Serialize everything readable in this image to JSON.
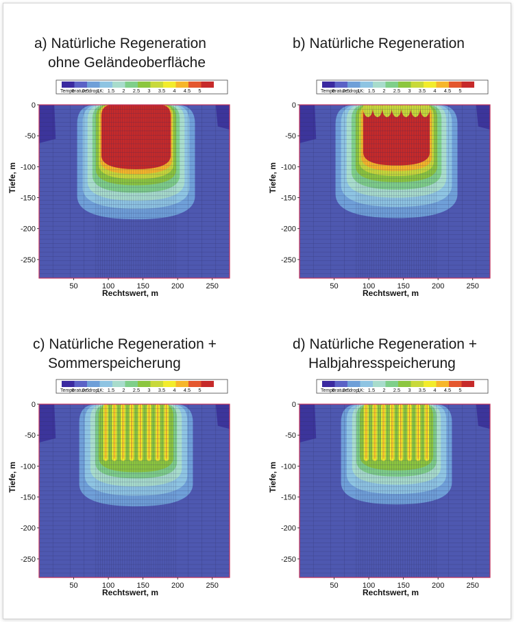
{
  "chart_data": [
    {
      "type": "heatmap",
      "title_line1": "a) Natürliche Regeneration",
      "title_line2": "ohne Geländeoberfläche",
      "xlabel": "Rechtswert, m",
      "ylabel": "Tiefe, m",
      "xlim": [
        0,
        275
      ],
      "ylim": [
        -280,
        0
      ],
      "xticks": [
        50,
        100,
        150,
        200,
        250
      ],
      "yticks": [
        0,
        -50,
        -100,
        -150,
        -200,
        -250
      ],
      "legend_title": "Temperature drop,K:",
      "scale_levels": [
        0,
        0.5,
        1,
        1.5,
        2,
        2.5,
        3,
        3.5,
        4,
        4.5,
        5
      ],
      "scale_colors": [
        "#3b2aa0",
        "#5b62c6",
        "#6f9fd8",
        "#8ec4e2",
        "#a8dccc",
        "#7fcf8a",
        "#8cc63f",
        "#c8d93a",
        "#f2ec2b",
        "#f6b62a",
        "#e4572e",
        "#c62a2a"
      ],
      "background_color": "#4e58b0",
      "contours": [
        {
          "level": 0.5,
          "x_range": [
            55,
            225
          ],
          "y_bottom": -185
        },
        {
          "level": 1,
          "x_range": [
            63,
            217
          ],
          "y_bottom": -168
        },
        {
          "level": 1.5,
          "x_range": [
            70,
            210
          ],
          "y_bottom": -155
        },
        {
          "level": 2,
          "x_range": [
            77,
            203
          ],
          "y_bottom": -142
        },
        {
          "level": 2.5,
          "x_range": [
            82,
            198
          ],
          "y_bottom": -130
        },
        {
          "level": 3,
          "x_range": [
            86,
            194
          ],
          "y_bottom": -120
        },
        {
          "level": 4,
          "x_range": [
            88,
            192
          ],
          "y_bottom": -112
        },
        {
          "level": 5,
          "x_range": [
            90,
            190
          ],
          "y_bottom": -104
        }
      ],
      "core_profile": "uniform"
    },
    {
      "type": "heatmap",
      "title_line1": "b) Natürliche Regeneration",
      "title_line2": "",
      "xlabel": "Rechtswert, m",
      "ylabel": "Tiefe, m",
      "xlim": [
        0,
        275
      ],
      "ylim": [
        -280,
        0
      ],
      "xticks": [
        50,
        100,
        150,
        200,
        250
      ],
      "yticks": [
        0,
        -50,
        -100,
        -150,
        -200,
        -250
      ],
      "legend_title": "Temperature drop,K:",
      "scale_levels": [
        0,
        0.5,
        1,
        1.5,
        2,
        2.5,
        3,
        3.5,
        4,
        4.5,
        5
      ],
      "scale_colors": [
        "#3b2aa0",
        "#5b62c6",
        "#6f9fd8",
        "#8ec4e2",
        "#a8dccc",
        "#7fcf8a",
        "#8cc63f",
        "#c8d93a",
        "#f2ec2b",
        "#f6b62a",
        "#e4572e",
        "#c62a2a"
      ],
      "background_color": "#4e58b0",
      "contours": [
        {
          "level": 0.5,
          "x_range": [
            52,
            228
          ],
          "y_bottom": -183
        },
        {
          "level": 1,
          "x_range": [
            60,
            220
          ],
          "y_bottom": -165
        },
        {
          "level": 1.5,
          "x_range": [
            68,
            212
          ],
          "y_bottom": -150
        },
        {
          "level": 2,
          "x_range": [
            75,
            205
          ],
          "y_bottom": -137
        },
        {
          "level": 2.5,
          "x_range": [
            81,
            199
          ],
          "y_bottom": -125
        },
        {
          "level": 3,
          "x_range": [
            86,
            194
          ],
          "y_bottom": -115
        },
        {
          "level": 4,
          "x_range": [
            89,
            191
          ],
          "y_bottom": -107
        },
        {
          "level": 5,
          "x_range": [
            92,
            188
          ],
          "y_bottom": -98
        }
      ],
      "core_profile": "scalloped"
    },
    {
      "type": "heatmap",
      "title_line1": "c) Natürliche Regeneration +",
      "title_line2": "Sommerspeicherung",
      "xlabel": "Rechtswert, m",
      "ylabel": "Tiefe, m",
      "xlim": [
        0,
        275
      ],
      "ylim": [
        -280,
        0
      ],
      "xticks": [
        50,
        100,
        150,
        200,
        250
      ],
      "yticks": [
        0,
        -50,
        -100,
        -150,
        -200,
        -250
      ],
      "legend_title": "Temperature drop,K:",
      "scale_levels": [
        0,
        0.5,
        1,
        1.5,
        2,
        2.5,
        3,
        3.5,
        4,
        4.5,
        5
      ],
      "scale_colors": [
        "#3b2aa0",
        "#5b62c6",
        "#6f9fd8",
        "#8ec4e2",
        "#a8dccc",
        "#7fcf8a",
        "#8cc63f",
        "#c8d93a",
        "#f2ec2b",
        "#f6b62a",
        "#e4572e",
        "#c62a2a"
      ],
      "background_color": "#4e58b0",
      "contours": [
        {
          "level": 0.5,
          "x_range": [
            58,
            222
          ],
          "y_bottom": -165
        },
        {
          "level": 1,
          "x_range": [
            66,
            214
          ],
          "y_bottom": -148
        },
        {
          "level": 1.5,
          "x_range": [
            74,
            206
          ],
          "y_bottom": -133
        },
        {
          "level": 2,
          "x_range": [
            81,
            199
          ],
          "y_bottom": -120
        },
        {
          "level": 2.5,
          "x_range": [
            86,
            194
          ],
          "y_bottom": -110
        }
      ],
      "core_profile": "columns"
    },
    {
      "type": "heatmap",
      "title_line1": "d) Natürliche Regeneration +",
      "title_line2": "Halbjahresspeicherung",
      "xlabel": "Rechtswert, m",
      "ylabel": "Tiefe, m",
      "xlim": [
        0,
        275
      ],
      "ylim": [
        -280,
        0
      ],
      "xticks": [
        50,
        100,
        150,
        200,
        250
      ],
      "yticks": [
        0,
        -50,
        -100,
        -150,
        -200,
        -250
      ],
      "legend_title": "Temperature drop,K:",
      "scale_levels": [
        0,
        0.5,
        1,
        1.5,
        2,
        2.5,
        3,
        3.5,
        4,
        4.5,
        5
      ],
      "scale_colors": [
        "#3b2aa0",
        "#5b62c6",
        "#6f9fd8",
        "#8ec4e2",
        "#a8dccc",
        "#7fcf8a",
        "#8cc63f",
        "#c8d93a",
        "#f2ec2b",
        "#f6b62a",
        "#e4572e",
        "#c62a2a"
      ],
      "background_color": "#4e58b0",
      "contours": [
        {
          "level": 0.5,
          "x_range": [
            60,
            220
          ],
          "y_bottom": -162
        },
        {
          "level": 1,
          "x_range": [
            68,
            212
          ],
          "y_bottom": -145
        },
        {
          "level": 1.5,
          "x_range": [
            76,
            204
          ],
          "y_bottom": -130
        },
        {
          "level": 2,
          "x_range": [
            82,
            198
          ],
          "y_bottom": -117
        },
        {
          "level": 2.5,
          "x_range": [
            87,
            193
          ],
          "y_bottom": -107
        }
      ],
      "core_profile": "columns"
    }
  ]
}
